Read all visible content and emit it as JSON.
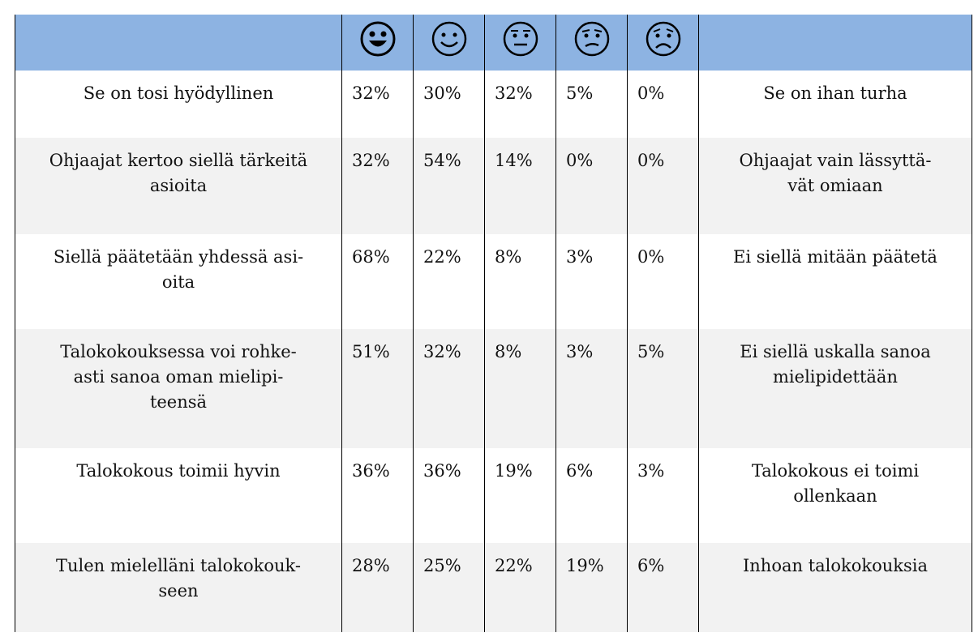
{
  "table": {
    "rows": [
      {
        "left": "Se on tosi hyödyllinen",
        "values": [
          "32%",
          "30%",
          "32%",
          "5%",
          "0%"
        ],
        "right": "Se on ihan turha"
      },
      {
        "left": "Ohjaajat kertoo siellä tärkeitä\nasioita",
        "values": [
          "32%",
          "54%",
          "14%",
          "0%",
          "0%"
        ],
        "right": "Ohjaajat vain lässyttä-\nvät omiaan"
      },
      {
        "left": "Siellä päätetään yhdessä asi-\noita",
        "values": [
          "68%",
          "22%",
          "8%",
          "3%",
          "0%"
        ],
        "right": "Ei siellä mitään päätetä"
      },
      {
        "left": "Talokokouksessa voi rohke-\nasti sanoa oman mielipi-\nteensä",
        "values": [
          "51%",
          "32%",
          "8%",
          "3%",
          "5%"
        ],
        "right": "Ei siellä uskalla sanoa\nmielipidettään"
      },
      {
        "left": "Talokokous toimii hyvin",
        "values": [
          "36%",
          "36%",
          "19%",
          "6%",
          "3%"
        ],
        "right": "Talokokous ei toimi\nollenkaan"
      },
      {
        "left": "Tulen mielelläni talokokouk-\nseen",
        "values": [
          "28%",
          "25%",
          "22%",
          "19%",
          "6%"
        ],
        "right": "Inhoan talokokouksia"
      }
    ]
  }
}
